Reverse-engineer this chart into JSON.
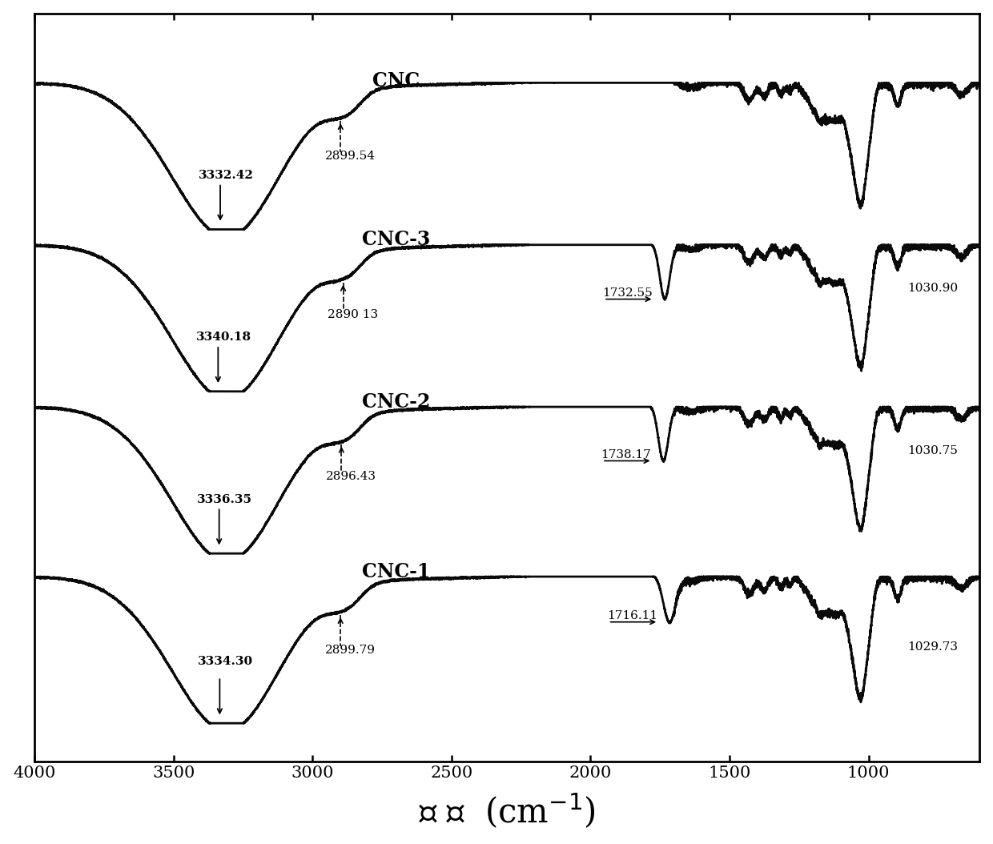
{
  "xlabel": "波 数  (cm⁻¹)",
  "xlabel_fontsize": 30,
  "xlim": [
    4000,
    600
  ],
  "xticks": [
    4000,
    3500,
    3000,
    2500,
    2000,
    1500,
    1000
  ],
  "spectra_labels": [
    "CNC",
    "CNC-3",
    "CNC-2",
    "CNC-1"
  ],
  "label_fontsize": 17,
  "offsets": [
    3.2,
    2.15,
    1.1,
    0.0
  ],
  "background_color": "#ffffff",
  "line_color": "#0a0a0a",
  "line_width": 2.0
}
